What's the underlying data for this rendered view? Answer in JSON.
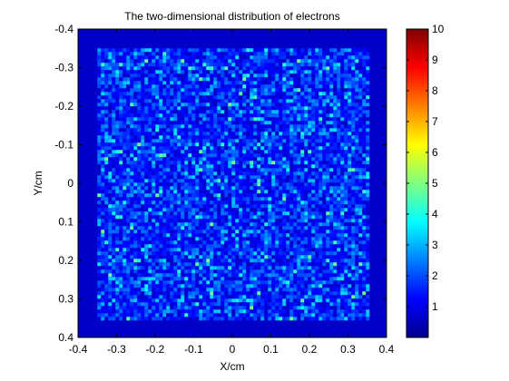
{
  "chart_data": {
    "type": "heatmap",
    "title": "The two-dimensional distribution of electrons",
    "xlabel": "X/cm",
    "ylabel": "Y/cm",
    "xlim": [
      -0.4,
      0.4
    ],
    "ylim": [
      -0.4,
      0.4
    ],
    "y_direction": "reversed",
    "x_ticks": [
      "-0.4",
      "-0.3",
      "-0.2",
      "-0.1",
      "0",
      "0.1",
      "0.2",
      "0.3",
      "0.4"
    ],
    "y_ticks": [
      "-0.4",
      "-0.3",
      "-0.2",
      "-0.1",
      "0",
      "0.1",
      "0.2",
      "0.3",
      "0.4"
    ],
    "colorbar": {
      "colormap": "jet",
      "clim": [
        0,
        10
      ],
      "ticks": [
        "1",
        "2",
        "3",
        "4",
        "5",
        "6",
        "7",
        "8",
        "9",
        "10"
      ]
    },
    "dense_region": {
      "x_range": [
        -0.35,
        0.35
      ],
      "y_range": [
        -0.35,
        0.35
      ],
      "typical_value": 1.5,
      "peak_value": 5
    },
    "border_value": 0.7,
    "grid": false
  }
}
